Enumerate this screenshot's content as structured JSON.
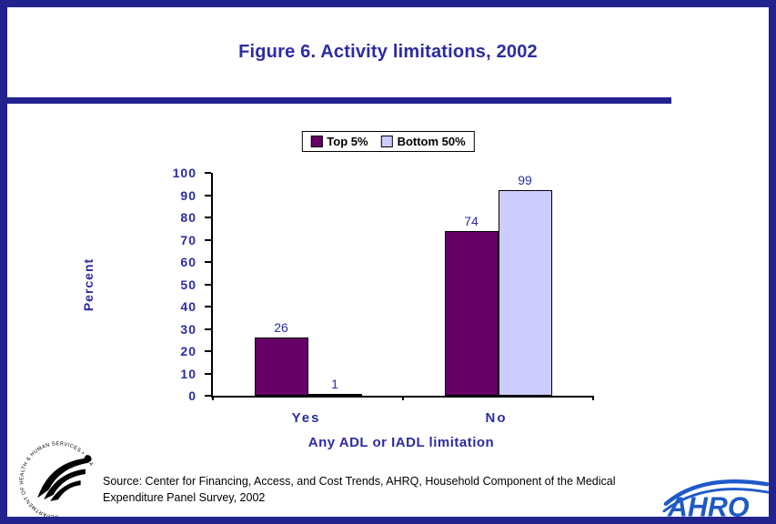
{
  "chart_data": {
    "type": "bar",
    "title": "Figure 6. Activity limitations, 2002",
    "categories": [
      "Yes",
      "No"
    ],
    "series": [
      {
        "name": "Top 5%",
        "color": "#660066",
        "values": [
          26,
          74
        ]
      },
      {
        "name": "Bottom 50%",
        "color": "#CCCCFF",
        "values": [
          1,
          99
        ]
      }
    ],
    "xlabel": "Any ADL or IADL limitation",
    "ylabel": "Percent",
    "ylim": [
      0,
      100
    ],
    "ytick_step": 10,
    "grid": false,
    "legend_position": "top-center",
    "data_labels": true
  },
  "footer": {
    "source_line1": "Source: Center for Financing, Access, and Cost Trends, AHRQ, Household Component of the Medical",
    "source_line2": "Expenditure Panel Survey, 2002"
  },
  "logos": {
    "hhs_seal_text": "DEPARTMENT OF HEALTH & HUMAN SERVICES • USA",
    "ahrq_text": "AHRQ"
  },
  "colors": {
    "navy_border": "#23238F",
    "navy_text": "#2B2BA6",
    "bar_top5": "#660066",
    "bar_bottom50": "#CCCCFF",
    "logo_blue": "#1E5AC8",
    "axis_line": "#000000"
  }
}
